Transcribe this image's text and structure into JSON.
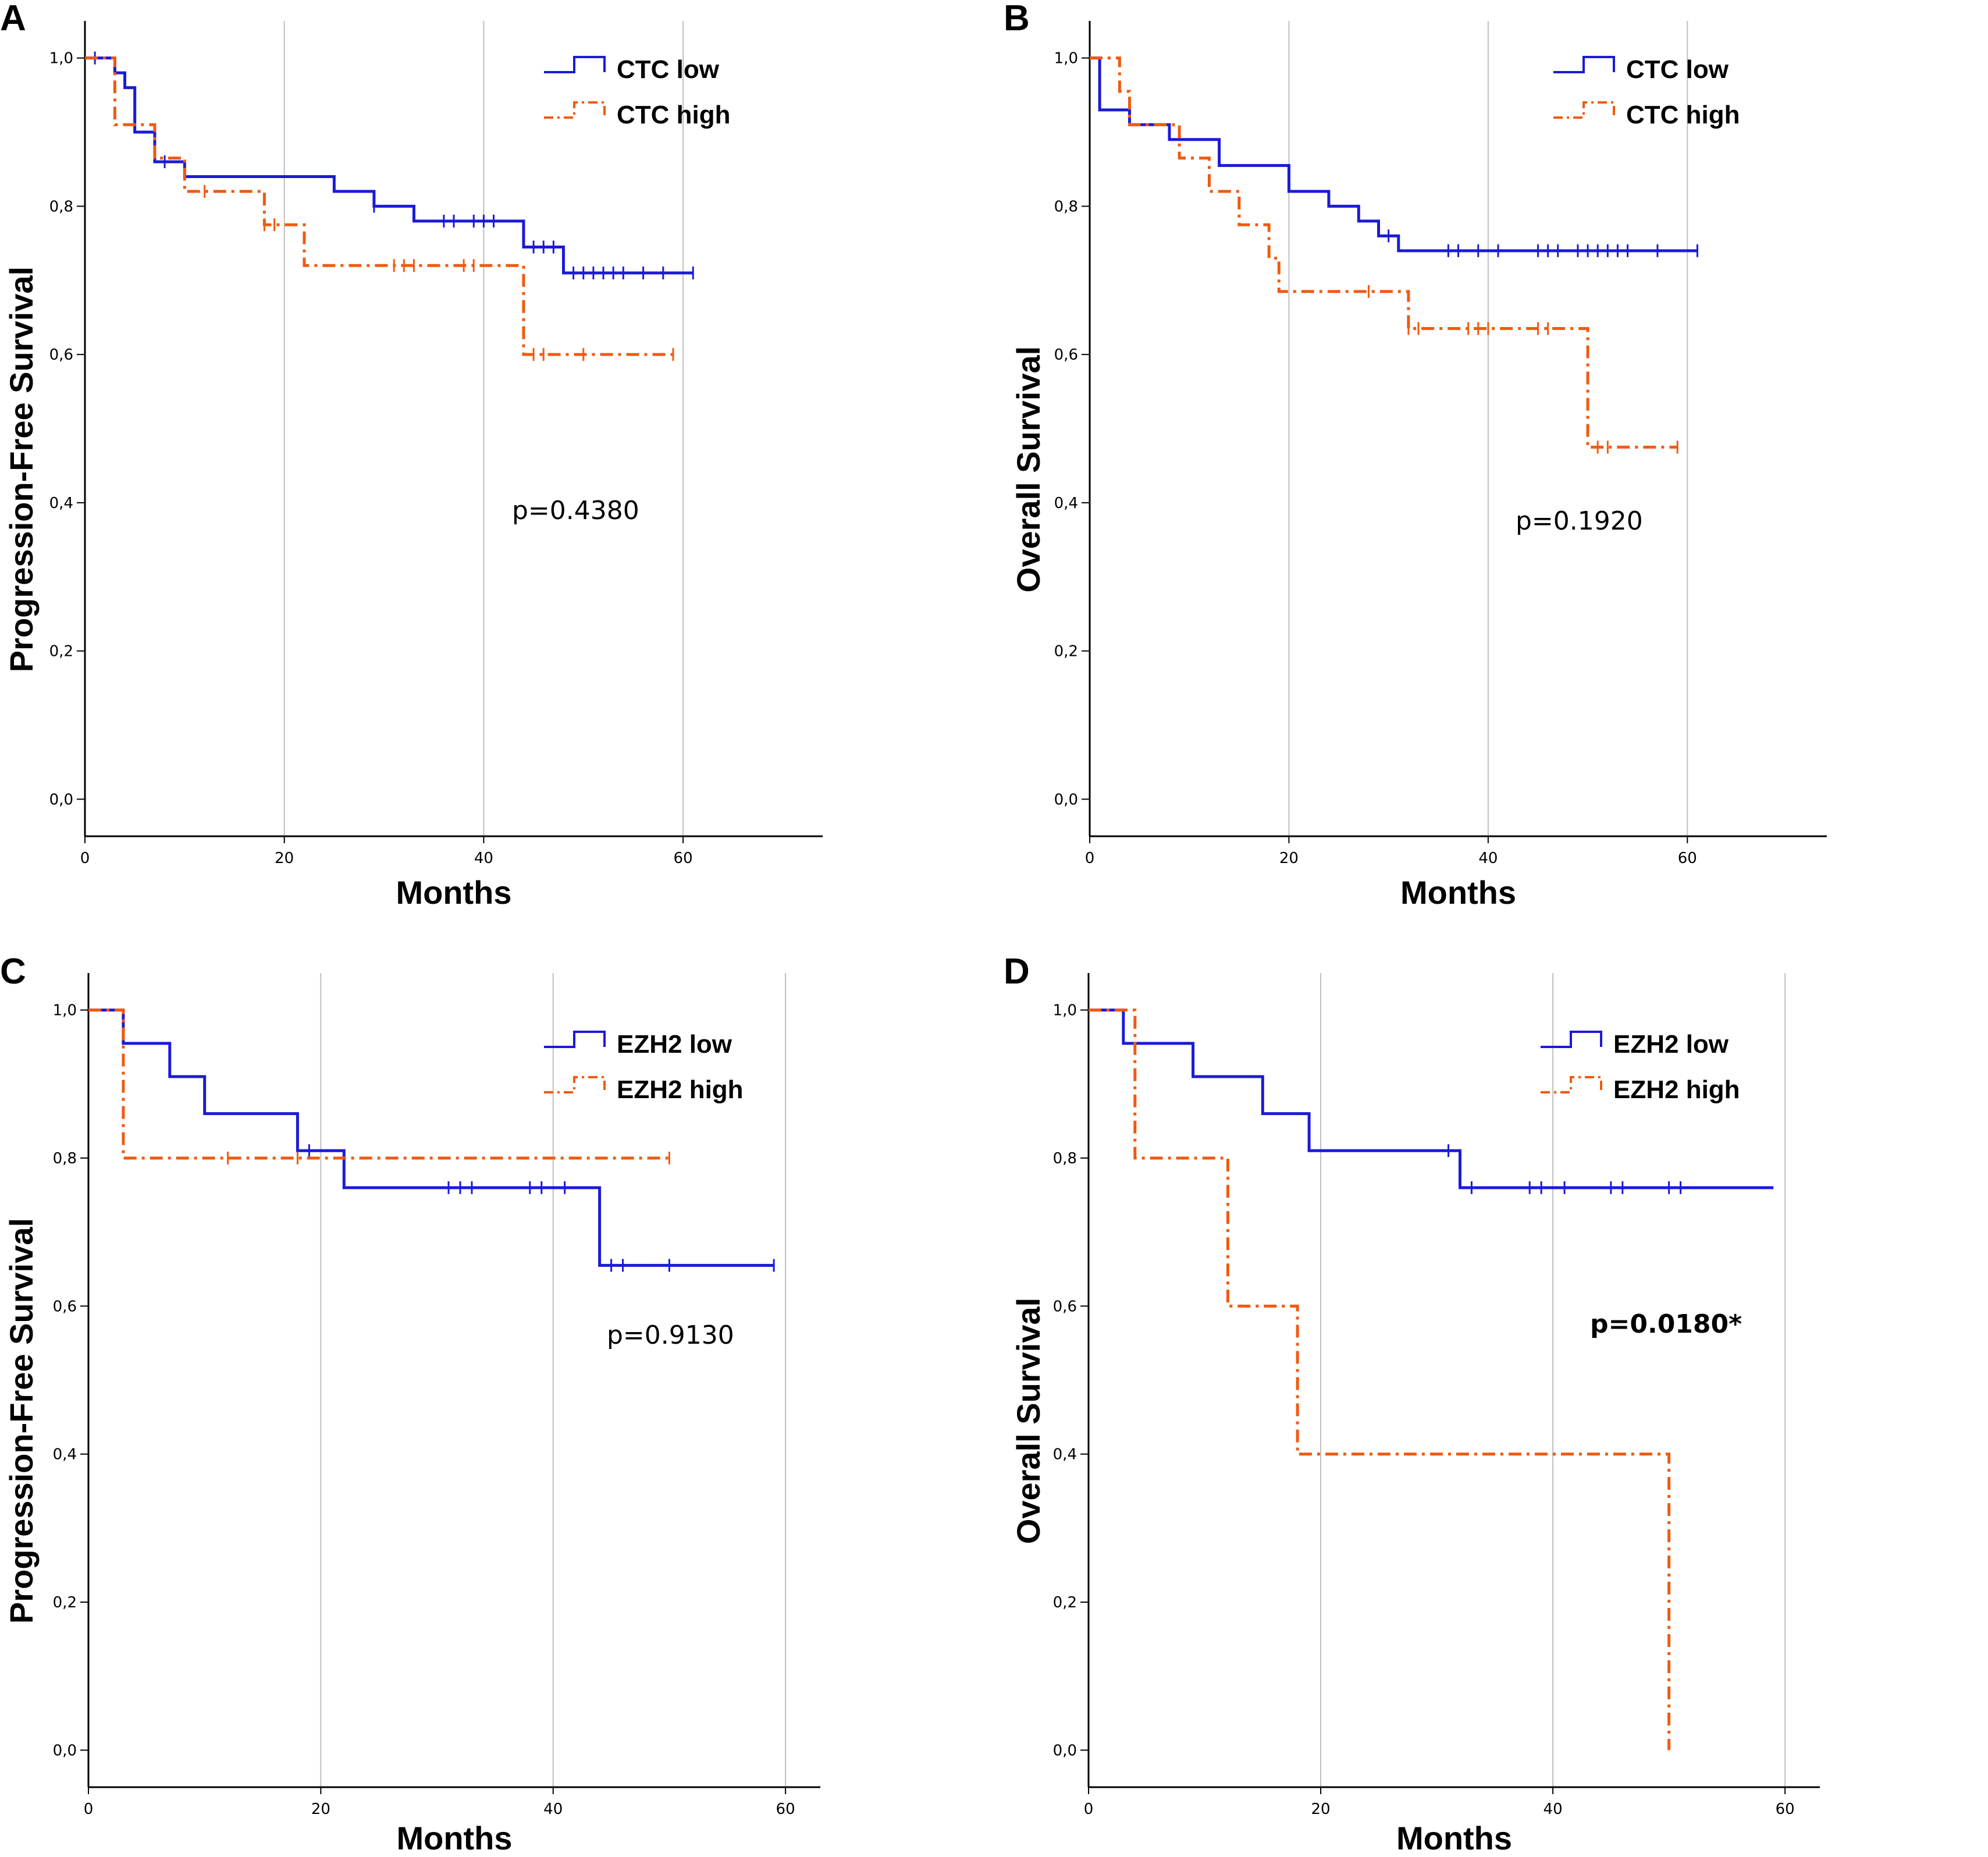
{
  "colors": {
    "low": "#1b1bd6",
    "high": "#f05a10",
    "grid": "#bfbfbf",
    "axis": "#000000"
  },
  "chart_data": [
    {
      "panel": "A",
      "type": "line",
      "subtype": "kaplan-meier",
      "ylabel": "Progression-Free Survival",
      "xlabel": "Months",
      "xlim": [
        0,
        74
      ],
      "ylim": [
        -0.05,
        1.05
      ],
      "xticks": [
        0,
        20,
        40,
        60
      ],
      "xtick_labels": [
        "0",
        "20",
        "40",
        "60"
      ],
      "yticks": [
        0.0,
        0.2,
        0.4,
        0.6,
        0.8,
        1.0
      ],
      "ytick_labels": [
        "0,0",
        "0,2",
        "0,4",
        "0,6",
        "0,8",
        "1,0"
      ],
      "grid": "vertical",
      "legend_position": "top-right",
      "pvalue": "p=0.4380",
      "pvalue_bold": false,
      "series": [
        {
          "name": "CTC low",
          "group": "low",
          "steps": [
            [
              0,
              1.0
            ],
            [
              3,
              0.98
            ],
            [
              4,
              0.96
            ],
            [
              5,
              0.9
            ],
            [
              7,
              0.86
            ],
            [
              10,
              0.84
            ],
            [
              25,
              0.82
            ],
            [
              29,
              0.8
            ],
            [
              33,
              0.78
            ],
            [
              44,
              0.745
            ],
            [
              48,
              0.71
            ],
            [
              61,
              0.71
            ]
          ],
          "censors": [
            [
              1,
              1.0
            ],
            [
              8,
              0.86
            ],
            [
              29,
              0.8
            ],
            [
              36,
              0.78
            ],
            [
              37,
              0.78
            ],
            [
              39,
              0.78
            ],
            [
              40,
              0.78
            ],
            [
              41,
              0.78
            ],
            [
              45,
              0.745
            ],
            [
              46,
              0.745
            ],
            [
              47,
              0.745
            ],
            [
              49,
              0.71
            ],
            [
              50,
              0.71
            ],
            [
              51,
              0.71
            ],
            [
              52,
              0.71
            ],
            [
              53,
              0.71
            ],
            [
              54,
              0.71
            ],
            [
              56,
              0.71
            ],
            [
              58,
              0.71
            ],
            [
              61,
              0.71
            ]
          ]
        },
        {
          "name": "CTC high",
          "group": "high",
          "steps": [
            [
              0,
              1.0
            ],
            [
              3,
              0.91
            ],
            [
              7,
              0.865
            ],
            [
              10,
              0.82
            ],
            [
              18,
              0.775
            ],
            [
              22,
              0.72
            ],
            [
              44,
              0.6
            ],
            [
              59,
              0.6
            ]
          ],
          "censors": [
            [
              12,
              0.82
            ],
            [
              18,
              0.775
            ],
            [
              19,
              0.775
            ],
            [
              31,
              0.72
            ],
            [
              32,
              0.72
            ],
            [
              33,
              0.72
            ],
            [
              38,
              0.72
            ],
            [
              39,
              0.72
            ],
            [
              45,
              0.6
            ],
            [
              46,
              0.6
            ],
            [
              50,
              0.6
            ],
            [
              59,
              0.6
            ]
          ]
        }
      ]
    },
    {
      "panel": "B",
      "type": "line",
      "subtype": "kaplan-meier",
      "ylabel": "Overall Survival",
      "xlabel": "Months",
      "xlim": [
        0,
        74
      ],
      "ylim": [
        -0.05,
        1.05
      ],
      "xticks": [
        0,
        20,
        40,
        60
      ],
      "xtick_labels": [
        "0",
        "20",
        "40",
        "60"
      ],
      "yticks": [
        0.0,
        0.2,
        0.4,
        0.6,
        0.8,
        1.0
      ],
      "ytick_labels": [
        "0,0",
        "0,2",
        "0,4",
        "0,6",
        "0,8",
        "1,0"
      ],
      "grid": "vertical",
      "legend_position": "top-right",
      "pvalue": "p=0.1920",
      "pvalue_bold": false,
      "series": [
        {
          "name": "CTC low",
          "group": "low",
          "steps": [
            [
              0,
              1.0
            ],
            [
              1,
              0.93
            ],
            [
              4,
              0.91
            ],
            [
              8,
              0.89
            ],
            [
              13,
              0.855
            ],
            [
              20,
              0.82
            ],
            [
              24,
              0.8
            ],
            [
              27,
              0.78
            ],
            [
              29,
              0.76
            ],
            [
              31,
              0.74
            ],
            [
              61,
              0.74
            ]
          ],
          "censors": [
            [
              30,
              0.76
            ],
            [
              36,
              0.74
            ],
            [
              37,
              0.74
            ],
            [
              39,
              0.74
            ],
            [
              41,
              0.74
            ],
            [
              45,
              0.74
            ],
            [
              46,
              0.74
            ],
            [
              47,
              0.74
            ],
            [
              49,
              0.74
            ],
            [
              50,
              0.74
            ],
            [
              51,
              0.74
            ],
            [
              52,
              0.74
            ],
            [
              53,
              0.74
            ],
            [
              54,
              0.74
            ],
            [
              57,
              0.74
            ],
            [
              61,
              0.74
            ]
          ]
        },
        {
          "name": "CTC high",
          "group": "high",
          "steps": [
            [
              0,
              1.0
            ],
            [
              3,
              0.955
            ],
            [
              4,
              0.91
            ],
            [
              9,
              0.865
            ],
            [
              12,
              0.82
            ],
            [
              15,
              0.775
            ],
            [
              18,
              0.73
            ],
            [
              19,
              0.685
            ],
            [
              32,
              0.635
            ],
            [
              50,
              0.475
            ],
            [
              59,
              0.475
            ]
          ],
          "censors": [
            [
              28,
              0.685
            ],
            [
              32,
              0.635
            ],
            [
              33,
              0.635
            ],
            [
              38,
              0.635
            ],
            [
              39,
              0.635
            ],
            [
              40,
              0.635
            ],
            [
              45,
              0.635
            ],
            [
              46,
              0.635
            ],
            [
              51,
              0.475
            ],
            [
              52,
              0.475
            ],
            [
              59,
              0.475
            ]
          ]
        }
      ]
    },
    {
      "panel": "C",
      "type": "line",
      "subtype": "kaplan-meier",
      "ylabel": "Progression-Free Survival",
      "xlabel": "Months",
      "xlim": [
        0,
        63
      ],
      "ylim": [
        -0.05,
        1.05
      ],
      "xticks": [
        0,
        20,
        40,
        60
      ],
      "xtick_labels": [
        "0",
        "20",
        "40",
        "60"
      ],
      "yticks": [
        0.0,
        0.2,
        0.4,
        0.6,
        0.8,
        1.0
      ],
      "ytick_labels": [
        "0,0",
        "0,2",
        "0,4",
        "0,6",
        "0,8",
        "1,0"
      ],
      "grid": "vertical",
      "legend_position": "top-right",
      "pvalue": "p=0.9130",
      "pvalue_bold": false,
      "series": [
        {
          "name": "EZH2 low",
          "group": "low",
          "steps": [
            [
              0,
              1.0
            ],
            [
              3,
              0.955
            ],
            [
              7,
              0.91
            ],
            [
              10,
              0.86
            ],
            [
              18,
              0.81
            ],
            [
              22,
              0.76
            ],
            [
              44,
              0.655
            ],
            [
              59,
              0.655
            ]
          ],
          "censors": [
            [
              19,
              0.81
            ],
            [
              31,
              0.76
            ],
            [
              32,
              0.76
            ],
            [
              33,
              0.76
            ],
            [
              38,
              0.76
            ],
            [
              39,
              0.76
            ],
            [
              41,
              0.76
            ],
            [
              45,
              0.655
            ],
            [
              46,
              0.655
            ],
            [
              50,
              0.655
            ],
            [
              59,
              0.655
            ]
          ]
        },
        {
          "name": "EZH2 high",
          "group": "high",
          "steps": [
            [
              0,
              1.0
            ],
            [
              3,
              0.8
            ],
            [
              50,
              0.8
            ]
          ],
          "censors": [
            [
              12,
              0.8
            ],
            [
              18,
              0.8
            ],
            [
              50,
              0.8
            ]
          ]
        }
      ]
    },
    {
      "panel": "D",
      "type": "line",
      "subtype": "kaplan-meier",
      "ylabel": "Overall Survival",
      "xlabel": "Months",
      "xlim": [
        0,
        63
      ],
      "ylim": [
        -0.05,
        1.05
      ],
      "xticks": [
        0,
        20,
        40,
        60
      ],
      "xtick_labels": [
        "0",
        "20",
        "40",
        "60"
      ],
      "yticks": [
        0.0,
        0.2,
        0.4,
        0.6,
        0.8,
        1.0
      ],
      "ytick_labels": [
        "0,0",
        "0,2",
        "0,4",
        "0,6",
        "0,8",
        "1,0"
      ],
      "grid": "vertical",
      "legend_position": "top-right",
      "pvalue": "p=0.0180*",
      "pvalue_bold": true,
      "series": [
        {
          "name": "EZH2 low",
          "group": "low",
          "steps": [
            [
              0,
              1.0
            ],
            [
              3,
              0.955
            ],
            [
              9,
              0.91
            ],
            [
              15,
              0.86
            ],
            [
              19,
              0.81
            ],
            [
              32,
              0.76
            ],
            [
              59,
              0.76
            ]
          ],
          "censors": [
            [
              31,
              0.81
            ],
            [
              33,
              0.76
            ],
            [
              38,
              0.76
            ],
            [
              39,
              0.76
            ],
            [
              41,
              0.76
            ],
            [
              45,
              0.76
            ],
            [
              46,
              0.76
            ],
            [
              50,
              0.76
            ],
            [
              51,
              0.76
            ]
          ]
        },
        {
          "name": "EZH2 high",
          "group": "high",
          "steps": [
            [
              0,
              1.0
            ],
            [
              4,
              0.8
            ],
            [
              12,
              0.6
            ],
            [
              18,
              0.4
            ],
            [
              50,
              0.0
            ]
          ],
          "censors": []
        }
      ]
    }
  ]
}
